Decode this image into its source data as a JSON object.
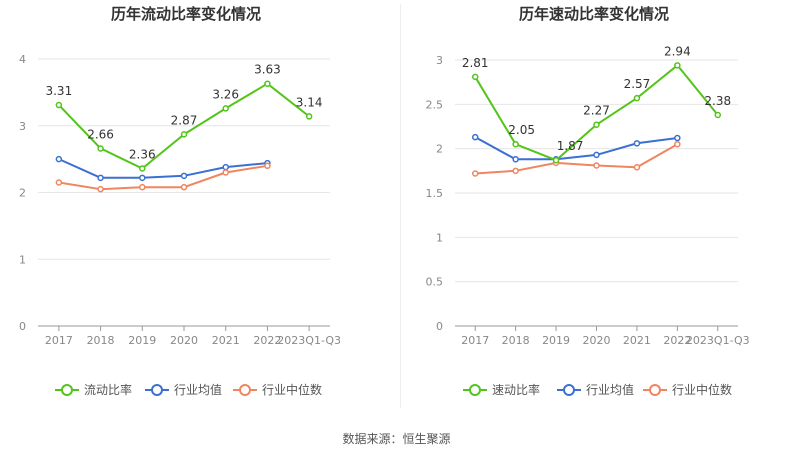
{
  "chart_data": [
    {
      "type": "line",
      "title": "历年流动比率变化情况",
      "categories": [
        "2017",
        "2018",
        "2019",
        "2020",
        "2021",
        "2022",
        "2023Q1-Q3"
      ],
      "ylim": [
        0,
        4
      ],
      "yticks": [
        "0",
        "1",
        "2",
        "3",
        "4"
      ],
      "series": [
        {
          "name": "流动比率",
          "color": "#52c41a",
          "values": [
            3.31,
            2.66,
            2.36,
            2.87,
            3.26,
            3.63,
            3.14
          ],
          "labels": [
            "3.31",
            "2.66",
            "2.36",
            "2.87",
            "3.26",
            "3.63",
            "3.14"
          ]
        },
        {
          "name": "行业均值",
          "color": "#3b6fd4",
          "values": [
            2.5,
            2.22,
            2.22,
            2.25,
            2.38,
            2.44,
            null
          ]
        },
        {
          "name": "行业中位数",
          "color": "#f0855f",
          "values": [
            2.15,
            2.05,
            2.08,
            2.08,
            2.3,
            2.4,
            null
          ]
        }
      ]
    },
    {
      "type": "line",
      "title": "历年速动比率变化情况",
      "categories": [
        "2017",
        "2018",
        "2019",
        "2020",
        "2021",
        "2022",
        "2023Q1-Q3"
      ],
      "ylim": [
        0,
        3
      ],
      "yticks": [
        "0",
        "0.5",
        "1",
        "1.5",
        "2",
        "2.5",
        "3"
      ],
      "series": [
        {
          "name": "速动比率",
          "color": "#52c41a",
          "values": [
            2.81,
            2.05,
            1.87,
            2.27,
            2.57,
            2.94,
            2.38
          ],
          "labels": [
            "2.81",
            "2.05",
            "1.87",
            "2.27",
            "2.57",
            "2.94",
            "2.38"
          ]
        },
        {
          "name": "行业均值",
          "color": "#3b6fd4",
          "values": [
            2.13,
            1.88,
            1.88,
            1.93,
            2.06,
            2.12,
            null
          ]
        },
        {
          "name": "行业中位数",
          "color": "#f0855f",
          "values": [
            1.72,
            1.75,
            1.84,
            1.81,
            1.79,
            2.05,
            null
          ]
        }
      ]
    }
  ],
  "footer": {
    "source": "数据来源：恒生聚源"
  }
}
